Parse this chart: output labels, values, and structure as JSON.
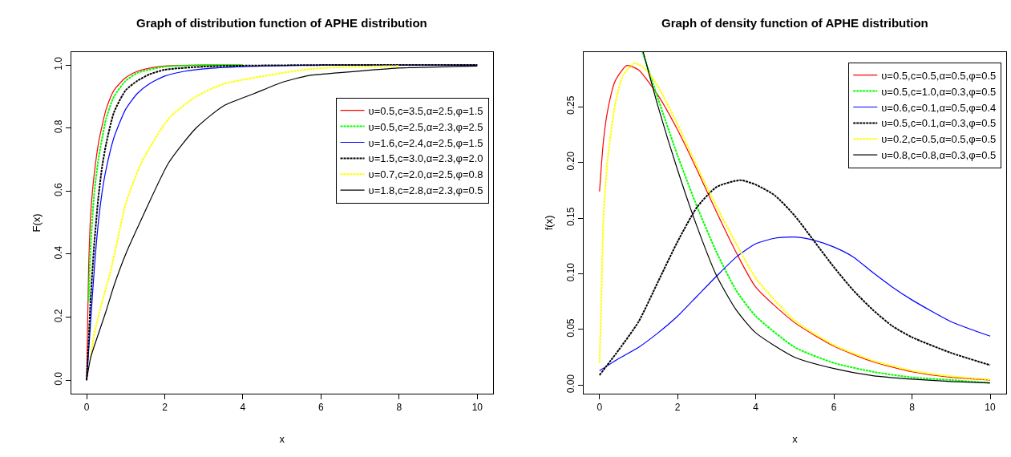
{
  "chart_data": [
    {
      "type": "line",
      "title": "Graph of distribution function of APHE distribution",
      "xlabel": "x",
      "ylabel": "F(x)",
      "xlim": [
        -0.4,
        10.4
      ],
      "ylim": [
        -0.042,
        1.041
      ],
      "xticks": [
        0,
        2,
        4,
        6,
        8,
        10
      ],
      "yticks": [
        {
          "value": 0,
          "label": "0.0"
        },
        {
          "value": 0.2,
          "label": "0.2"
        },
        {
          "value": 0.4,
          "label": "0.4"
        },
        {
          "value": 0.6,
          "label": "0.6"
        },
        {
          "value": 0.8,
          "label": "0.8"
        },
        {
          "value": 1,
          "label": "1.0"
        }
      ],
      "legend": "top right",
      "marker": "none",
      "series": [
        {
          "name": "υ=0.5,c=3.5,α=2.5,φ=1.5",
          "color": "#ff0000",
          "line_style": "solid",
          "x": [
            0,
            0.05,
            0.1,
            0.15,
            0.2,
            0.3,
            0.4,
            0.5,
            0.7,
            1.0,
            1.3,
            1.6,
            2,
            3,
            4
          ],
          "values": [
            0,
            0.35,
            0.52,
            0.6,
            0.66,
            0.75,
            0.81,
            0.86,
            0.92,
            0.96,
            0.98,
            0.99,
            0.997,
            1,
            1
          ]
        },
        {
          "name": "υ=0.5,c=2.5,α=2.3,φ=2.5",
          "color": "#00ff00",
          "line_style": "dashed",
          "x": [
            0.05,
            0.1,
            0.15,
            0.2,
            0.3,
            0.4,
            0.5,
            0.7,
            1.0,
            1.3,
            1.6,
            2,
            3,
            4
          ],
          "values": [
            0.25,
            0.42,
            0.52,
            0.6,
            0.7,
            0.77,
            0.83,
            0.9,
            0.95,
            0.975,
            0.985,
            0.995,
            1,
            1
          ]
        },
        {
          "name": "υ=1.6,c=2.4,α=2.5,φ=1.5",
          "color": "#0000ff",
          "line_style": "solid",
          "x": [
            0,
            0.1,
            0.2,
            0.3,
            0.4,
            0.5,
            0.7,
            1.0,
            1.3,
            1.6,
            2,
            2.5,
            3,
            4,
            5,
            6,
            8,
            10
          ],
          "values": [
            0,
            0.18,
            0.36,
            0.5,
            0.6,
            0.67,
            0.77,
            0.86,
            0.91,
            0.94,
            0.965,
            0.98,
            0.988,
            0.995,
            0.998,
            1,
            1,
            1
          ]
        },
        {
          "name": "υ=1.5,c=3.0,α=2.3,φ=2.0",
          "color": "#000000",
          "line_style": "dashed",
          "x": [
            0,
            0.05,
            0.1,
            0.15,
            0.2,
            0.3,
            0.4,
            0.5,
            0.7,
            1.0,
            1.3,
            1.6,
            2,
            3,
            4,
            6,
            8,
            10
          ],
          "values": [
            0,
            0.12,
            0.25,
            0.35,
            0.44,
            0.58,
            0.68,
            0.75,
            0.85,
            0.92,
            0.95,
            0.97,
            0.985,
            0.995,
            0.998,
            1,
            1,
            1
          ]
        },
        {
          "name": "υ=0.7,c=2.0,α=2.5,φ=0.8",
          "color": "#ffff00",
          "line_style": "dashed",
          "x": [
            0.1,
            0.2,
            0.4,
            0.6,
            0.8,
            1.0,
            1.4,
            2.1,
            2.8,
            3.5,
            4.3,
            5,
            5.7,
            6.4,
            8
          ],
          "values": [
            0.07,
            0.15,
            0.25,
            0.34,
            0.45,
            0.56,
            0.69,
            0.83,
            0.9,
            0.94,
            0.96,
            0.975,
            0.987,
            0.993,
            0.997
          ]
        },
        {
          "name": "υ=1.8,c=2.8,α=2.3,φ=0.5",
          "color": "#000000",
          "line_style": "solid",
          "x": [
            0,
            0.1,
            0.2,
            0.5,
            0.7,
            1.0,
            1.4,
            2.1,
            2.8,
            3.5,
            4.3,
            5,
            5.7,
            6.4,
            7.9,
            10
          ],
          "values": [
            0,
            0.07,
            0.11,
            0.22,
            0.3,
            0.4,
            0.51,
            0.69,
            0.8,
            0.87,
            0.91,
            0.945,
            0.967,
            0.975,
            0.99,
            0.997
          ]
        }
      ]
    },
    {
      "type": "line",
      "title": "Graph of density function of APHE distribution",
      "xlabel": "x",
      "ylabel": "f(x)",
      "xlim": [
        -0.4,
        10.4
      ],
      "ylim": [
        -0.0074,
        0.299
      ],
      "xticks": [
        0,
        2,
        4,
        6,
        8,
        10
      ],
      "yticks": [
        {
          "value": 0,
          "label": "0.00"
        },
        {
          "value": 0.05,
          "label": "0.05"
        },
        {
          "value": 0.1,
          "label": "0.10"
        },
        {
          "value": 0.15,
          "label": "0.15"
        },
        {
          "value": 0.2,
          "label": "0.20"
        },
        {
          "value": 0.25,
          "label": "0.25"
        }
      ],
      "legend": "top right",
      "marker": "none",
      "series": [
        {
          "name": "υ=0.5,c=0.5,α=0.5,φ=0.5",
          "color": "#ff0000",
          "line_style": "solid",
          "x": [
            0,
            0.1,
            0.2,
            0.4,
            0.7,
            1.0,
            1.5,
            2,
            2.5,
            3,
            3.5,
            4,
            5,
            6,
            7,
            8,
            9,
            10
          ],
          "values": [
            0.174,
            0.219,
            0.245,
            0.273,
            0.287,
            0.283,
            0.26,
            0.229,
            0.193,
            0.155,
            0.119,
            0.088,
            0.056,
            0.035,
            0.021,
            0.012,
            0.007,
            0.0046
          ]
        },
        {
          "name": "υ=0.5,c=1.0,α=0.3,φ=0.5",
          "color": "#00ff00",
          "line_style": "dashed",
          "x": [
            1.1,
            1.5,
            2,
            2.5,
            3,
            3.5,
            4,
            5,
            6,
            7,
            8,
            9,
            10
          ],
          "values": [
            0.299,
            0.257,
            0.206,
            0.16,
            0.119,
            0.085,
            0.062,
            0.034,
            0.02,
            0.012,
            0.007,
            0.0046,
            0.002
          ]
        },
        {
          "name": "υ=0.6,c=0.1,α=0.5,φ=0.4",
          "color": "#0000ff",
          "line_style": "solid",
          "x": [
            0,
            0.5,
            1,
            1.5,
            2,
            2.5,
            3,
            3.5,
            4,
            4.5,
            5,
            5.5,
            6,
            6.5,
            7,
            7.5,
            8,
            9,
            10
          ],
          "values": [
            0.013,
            0.024,
            0.034,
            0.047,
            0.062,
            0.08,
            0.098,
            0.115,
            0.127,
            0.132,
            0.133,
            0.13,
            0.124,
            0.115,
            0.101,
            0.088,
            0.0765,
            0.057,
            0.044
          ]
        },
        {
          "name": "υ=0.5,c=0.1,α=0.3,φ=0.5",
          "color": "#000000",
          "line_style": "dashed",
          "x": [
            0,
            0.5,
            1,
            1.5,
            2,
            2.5,
            3,
            3.6,
            4,
            4.5,
            5,
            5.5,
            6,
            6.5,
            7,
            7.5,
            8,
            9,
            10
          ],
          "values": [
            0.009,
            0.032,
            0.057,
            0.093,
            0.129,
            0.16,
            0.178,
            0.184,
            0.18,
            0.17,
            0.152,
            0.129,
            0.106,
            0.085,
            0.0675,
            0.053,
            0.043,
            0.029,
            0.018
          ]
        },
        {
          "name": "υ=0.2,c=0.5,α=0.5,φ=0.5",
          "color": "#ffff00",
          "line_style": "dashed",
          "x": [
            0,
            0.05,
            0.1,
            0.2,
            0.4,
            0.6,
            0.9,
            1.2,
            1.5,
            2,
            2.5,
            3,
            3.5,
            4,
            5,
            6,
            7,
            8,
            9,
            10
          ],
          "values": [
            0.02,
            0.08,
            0.15,
            0.2,
            0.252,
            0.278,
            0.289,
            0.283,
            0.268,
            0.234,
            0.196,
            0.16,
            0.127,
            0.096,
            0.058,
            0.036,
            0.022,
            0.013,
            0.008,
            0.005
          ]
        },
        {
          "name": "υ=0.8,c=0.8,α=0.3,φ=0.5",
          "color": "#000000",
          "line_style": "solid",
          "x": [
            1.12,
            1.5,
            2,
            2.5,
            3,
            3.5,
            4,
            5,
            6,
            7,
            8,
            9,
            10
          ],
          "values": [
            0.299,
            0.25,
            0.193,
            0.142,
            0.098,
            0.0675,
            0.047,
            0.025,
            0.015,
            0.0085,
            0.0054,
            0.0033,
            0.002
          ]
        }
      ]
    }
  ]
}
